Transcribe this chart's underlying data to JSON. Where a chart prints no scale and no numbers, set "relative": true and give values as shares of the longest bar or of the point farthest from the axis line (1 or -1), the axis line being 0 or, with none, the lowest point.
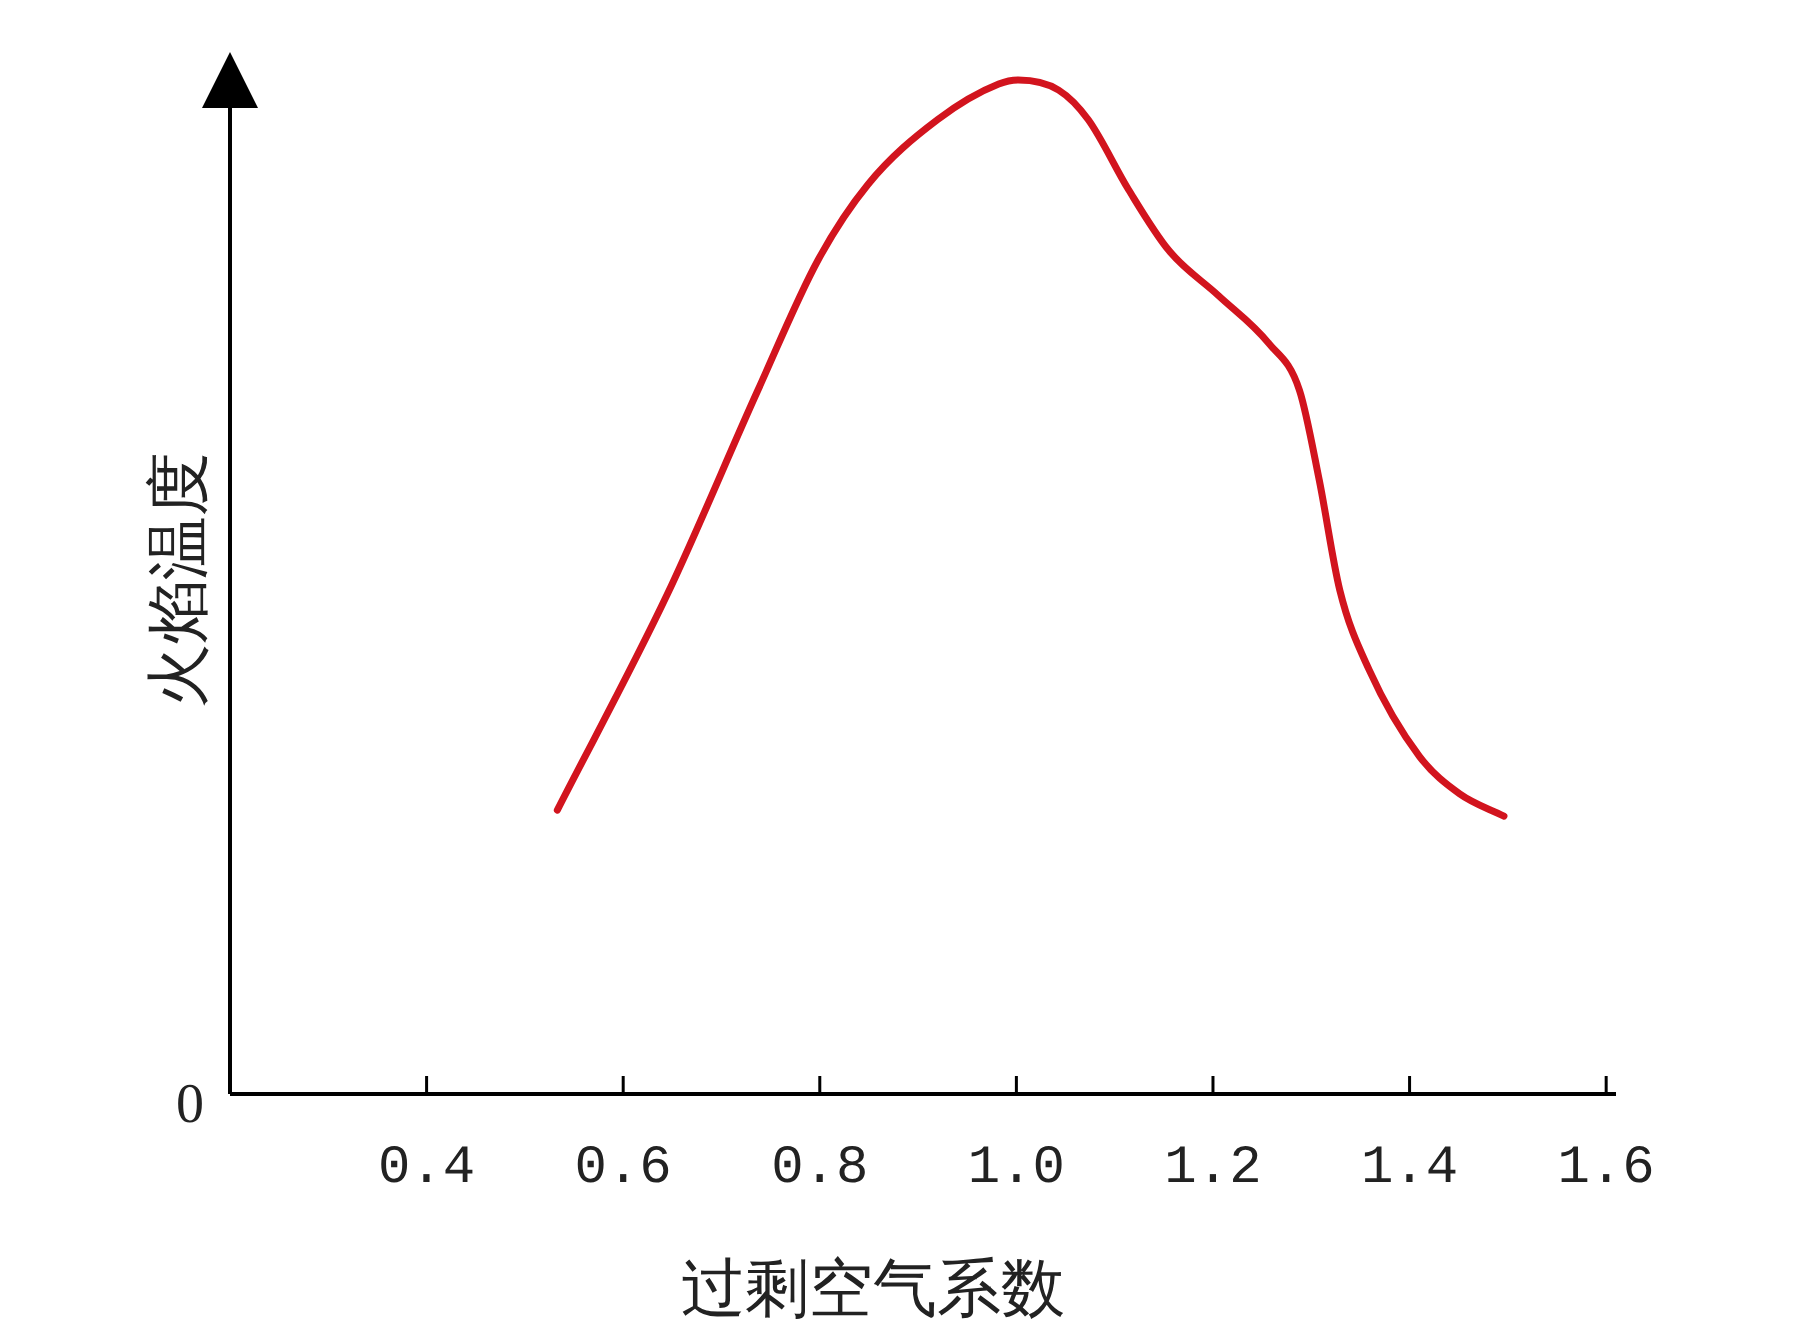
{
  "chart_data": {
    "type": "line",
    "xlabel": "过剩空气系数",
    "ylabel": "火焰温度",
    "relative": true,
    "annotations": [
      "0"
    ],
    "xlim": [
      0.2,
      1.61
    ],
    "xticks": [
      0.4,
      0.6,
      0.8,
      {
        "value": 1,
        "label": "1.0"
      },
      1.2,
      1.4,
      1.6
    ],
    "series": [
      {
        "color": "#d2141e",
        "x": [
          0.533,
          0.645,
          0.737,
          0.798,
          0.849,
          0.92,
          0.982,
          1.002,
          1.043,
          1.073,
          1.114,
          1.155,
          1.206,
          1.257,
          1.288,
          1.308,
          1.329,
          1.359,
          1.41,
          1.451,
          1.496
        ],
        "values": [
          0.28,
          0.493,
          0.694,
          0.822,
          0.897,
          0.961,
          0.996,
          1.0,
          0.99,
          0.961,
          0.892,
          0.832,
          0.787,
          0.74,
          0.694,
          0.606,
          0.497,
          0.418,
          0.333,
          0.296,
          0.274
        ]
      }
    ]
  }
}
